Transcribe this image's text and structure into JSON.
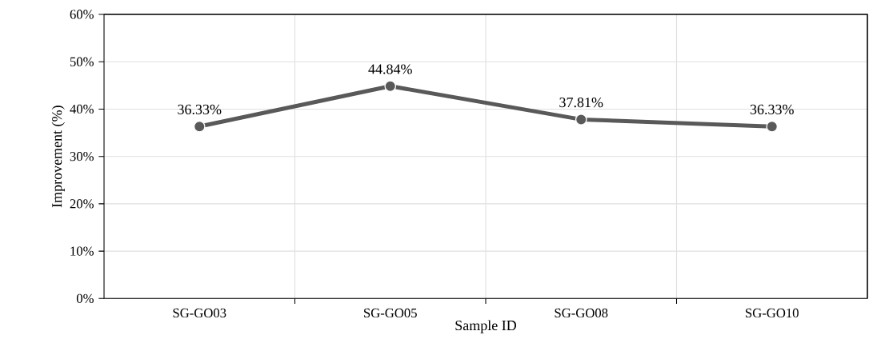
{
  "chart_data": {
    "type": "line",
    "xlabel": "Sample ID",
    "ylabel": "Improvement (%)",
    "categories": [
      "SG-GO03",
      "SG-GO05",
      "SG-GO08",
      "SG-GO10"
    ],
    "series": [
      {
        "color": "#595959",
        "values": [
          36.33,
          44.84,
          37.81,
          36.33
        ]
      }
    ],
    "value_labels": [
      "36.33%",
      "44.84%",
      "37.81%",
      "36.33%"
    ],
    "ylim": [
      0,
      60
    ],
    "yticks": [
      {
        "value": 0,
        "label": "0%"
      },
      {
        "value": 10,
        "label": "10%"
      },
      {
        "value": 20,
        "label": "20%"
      },
      {
        "value": 30,
        "label": "30%"
      },
      {
        "value": 40,
        "label": "40%"
      },
      {
        "value": 50,
        "label": "50%"
      },
      {
        "value": 60,
        "label": "60%"
      }
    ],
    "grid": true,
    "marker": "circle",
    "line_style": "solid"
  }
}
